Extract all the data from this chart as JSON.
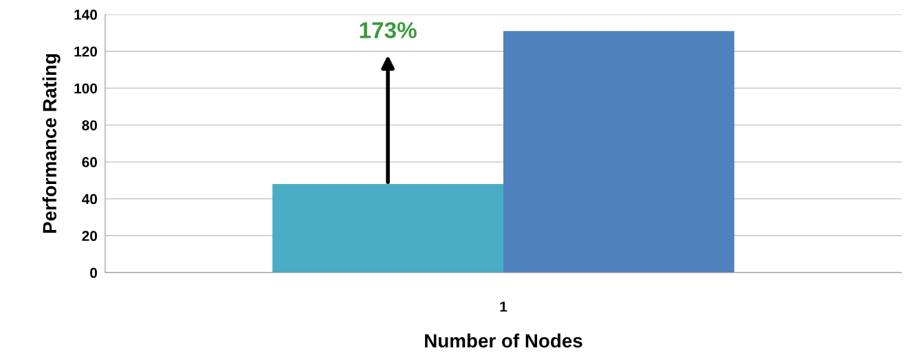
{
  "chart_data": {
    "type": "bar",
    "xlabel": "Number of Nodes",
    "ylabel": "Performance Rating",
    "categories": [
      "1"
    ],
    "series": [
      {
        "color": "#4bacc6",
        "values": [
          48
        ]
      },
      {
        "color": "#4f81bd",
        "values": [
          131
        ]
      }
    ],
    "ylim": [
      0,
      140
    ],
    "yticks": [
      0,
      20,
      40,
      60,
      80,
      100,
      120,
      140
    ],
    "grid": "y",
    "annotations": [
      "173%"
    ]
  }
}
